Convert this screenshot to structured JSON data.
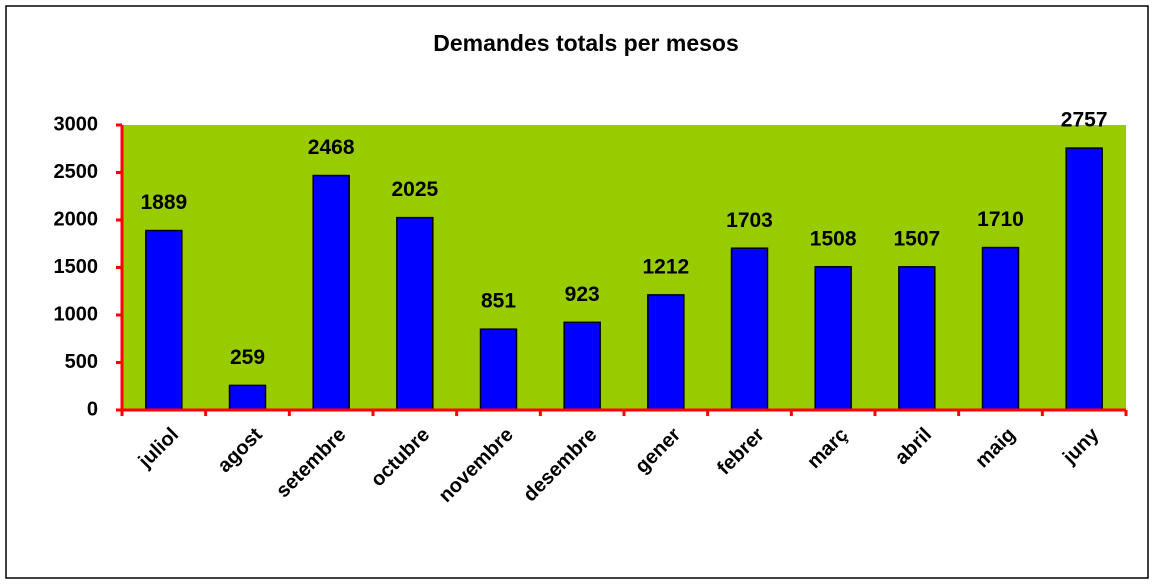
{
  "chart_data": {
    "type": "bar",
    "title": "Demandes totals per mesos",
    "categories": [
      "juliol",
      "agost",
      "setembre",
      "octubre",
      "novembre",
      "desembre",
      "gener",
      "febrer",
      "març",
      "abril",
      "maig",
      "juny"
    ],
    "values": [
      1889,
      259,
      2468,
      2025,
      851,
      923,
      1212,
      1703,
      1508,
      1507,
      1710,
      2757
    ],
    "color": "#0000ff",
    "plot_background": "#99cc00",
    "axis_color": "#ff0000",
    "ylim": [
      0,
      3000
    ],
    "yticks": [
      0,
      500,
      1000,
      1500,
      2000,
      2500,
      3000
    ],
    "grid": false
  }
}
